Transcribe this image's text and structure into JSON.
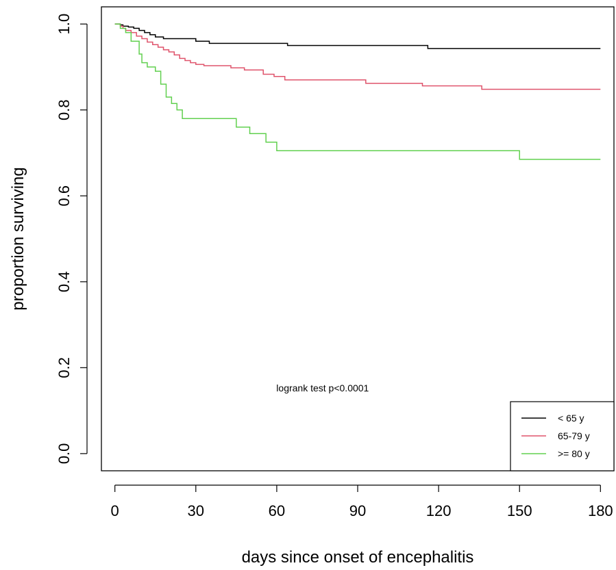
{
  "chart_data": {
    "type": "line",
    "title": "",
    "xlabel": "days since onset of encephalitis",
    "ylabel": "proportion surviving",
    "xlim": [
      -5,
      185
    ],
    "ylim": [
      -0.04,
      1.04
    ],
    "x_ticks": [
      0,
      30,
      60,
      90,
      120,
      150,
      180
    ],
    "x_tick_labels": [
      "0",
      "30",
      "60",
      "90",
      "120",
      "150",
      "180"
    ],
    "y_ticks": [
      0,
      0.2,
      0.4,
      0.6,
      0.8,
      1.0
    ],
    "y_tick_labels": [
      "0.0",
      "0.2",
      "0.4",
      "0.6",
      "0.8",
      "1.0"
    ],
    "step": true,
    "grid": false,
    "legend_position": "bottom-right",
    "annotation": {
      "text": "logrank test p<0.0001",
      "x": 77,
      "y": 0.145
    },
    "series": [
      {
        "name": "< 65 y",
        "color": "#000000",
        "x": [
          0,
          2,
          3,
          5,
          7,
          9,
          11,
          13,
          15,
          18,
          30,
          35,
          64,
          116,
          180
        ],
        "y": [
          1.0,
          0.998,
          0.995,
          0.993,
          0.99,
          0.985,
          0.98,
          0.975,
          0.97,
          0.966,
          0.96,
          0.955,
          0.95,
          0.943,
          0.943
        ]
      },
      {
        "name": "65-79 y",
        "color": "#DF536B",
        "x": [
          0,
          2,
          3,
          4,
          6,
          8,
          10,
          12,
          14,
          16,
          18,
          20,
          22,
          24,
          26,
          28,
          30,
          33,
          43,
          48,
          55,
          59,
          63,
          93,
          114,
          136,
          180
        ],
        "y": [
          1.0,
          0.995,
          0.99,
          0.985,
          0.98,
          0.972,
          0.966,
          0.958,
          0.952,
          0.946,
          0.94,
          0.935,
          0.928,
          0.92,
          0.915,
          0.91,
          0.906,
          0.903,
          0.898,
          0.893,
          0.883,
          0.878,
          0.87,
          0.862,
          0.856,
          0.848,
          0.848
        ]
      },
      {
        "name": ">= 80 y",
        "color": "#61D04F",
        "x": [
          0,
          2,
          4,
          6,
          9,
          10,
          12,
          15,
          17,
          19,
          21,
          23,
          25,
          27,
          45,
          50,
          56,
          60,
          150,
          180
        ],
        "y": [
          1.0,
          0.99,
          0.98,
          0.96,
          0.93,
          0.91,
          0.9,
          0.89,
          0.86,
          0.83,
          0.815,
          0.8,
          0.78,
          0.78,
          0.76,
          0.745,
          0.725,
          0.705,
          0.685,
          0.685
        ]
      }
    ]
  }
}
